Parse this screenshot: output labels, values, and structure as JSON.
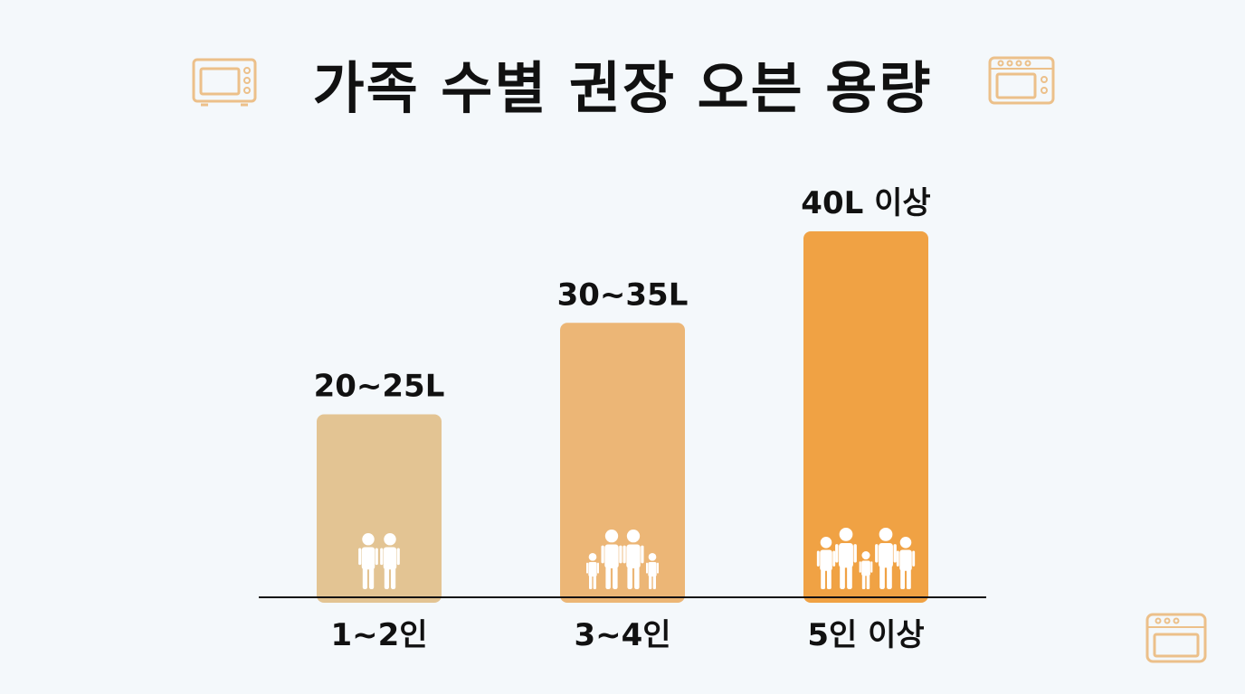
{
  "chart_data": {
    "type": "bar",
    "title": "가족 수별 권장 오븐 용량",
    "categories": [
      "1~2인",
      "3~4인",
      "5인 이상"
    ],
    "values": [
      20,
      30,
      40
    ],
    "value_labels": [
      "20~25L",
      "30~35L",
      "40L 이상"
    ],
    "family_sizes": [
      2,
      4,
      5
    ],
    "unit": "L",
    "ylim": [
      0,
      40
    ],
    "grid": false,
    "colors": [
      "#e3c493",
      "#ecb676",
      "#f0a244"
    ]
  },
  "decorations": {
    "icon": "oven-icon",
    "color": "#ecc08a"
  }
}
